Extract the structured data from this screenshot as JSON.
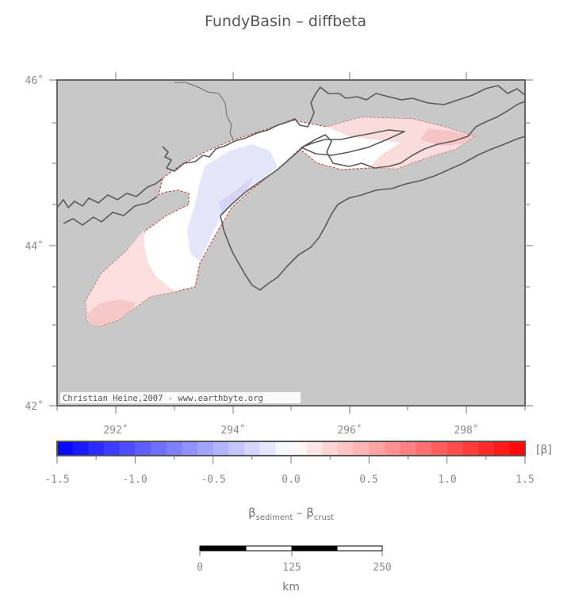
{
  "title": "FundyBasin – diffbeta",
  "map": {
    "lat_labels": [
      "46˚",
      "44˚",
      "42˚"
    ],
    "lon_labels": [
      "292˚",
      "294˚",
      "296˚",
      "298˚"
    ],
    "credit": "Christian Heine,2007 - www.earthbyte.org",
    "land_color": "#c8c8c8",
    "coast_color": "#5a5a5a",
    "basin_outline_color": "#c0392b"
  },
  "colorbar": {
    "unit_label": "[β]",
    "tick_labels": [
      "-1.5",
      "-1.0",
      "-0.5",
      "0.0",
      "0.5",
      "1.0",
      "1.5"
    ],
    "min": -1.5,
    "max": 1.5,
    "steps": 30,
    "low_color": "#0000ff",
    "mid_color": "#ffffff",
    "high_color": "#ff0000",
    "formula": {
      "beta": "β",
      "sub1": "sediment",
      "minus": " – ",
      "sub2": "crust"
    }
  },
  "scalebar": {
    "labels": [
      "0",
      "125",
      "250"
    ],
    "unit": "km"
  }
}
